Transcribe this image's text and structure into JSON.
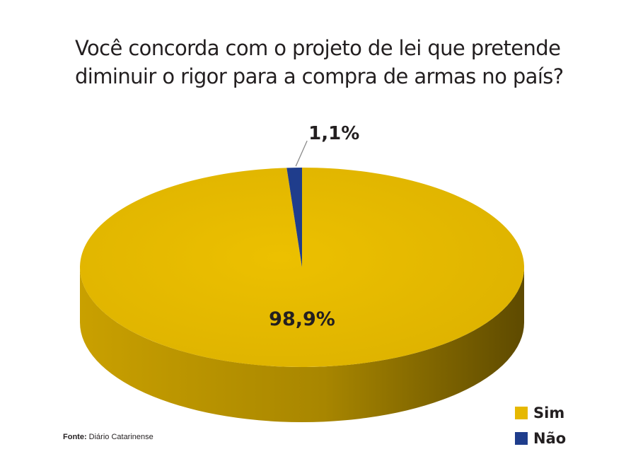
{
  "title_lines": [
    "Você concorda com o projeto de lei que pretende",
    "diminuir o rigor para a compra de armas no país?"
  ],
  "colors": {
    "sim": "#e6b800",
    "sim_side": "#8f7200",
    "nao": "#1f3d8c"
  },
  "chart_data": {
    "type": "pie",
    "title": "Você concorda com o projeto de lei que pretende diminuir o rigor para a compra de armas no país?",
    "slices": [
      {
        "label": "Sim",
        "value": 98.9,
        "display": "98,9%"
      },
      {
        "label": "Não",
        "value": 1.1,
        "display": "1,1%"
      }
    ],
    "legend_position": "bottom-right"
  },
  "legend": [
    {
      "label": "Sim",
      "color": "#e6b800"
    },
    {
      "label": "Não",
      "color": "#1f3d8c"
    }
  ],
  "source": {
    "prefix": "Fonte:",
    "text": " Diário Catarinense"
  }
}
